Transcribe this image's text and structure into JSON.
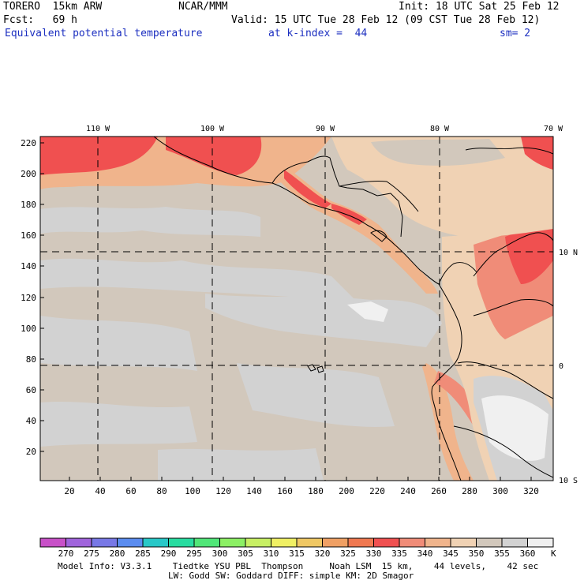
{
  "header": {
    "model": "TORERO  15km ARW",
    "org": "NCAR/MMM",
    "init": "Init: 18 UTC Sat 25 Feb 12",
    "fcst": "Fcst:   69 h",
    "valid": "Valid: 15 UTC Tue 28 Feb 12 (09 CST Tue 28 Feb 12)",
    "field": "Equivalent potential temperature",
    "level": "at k-index =  44",
    "smooth": "sm= 2"
  },
  "axes": {
    "left_ticks": [
      "220",
      "200",
      "180",
      "160",
      "140",
      "120",
      "100",
      "80",
      "60",
      "40",
      "20"
    ],
    "bottom_ticks": [
      "20",
      "40",
      "60",
      "80",
      "100",
      "120",
      "140",
      "160",
      "180",
      "200",
      "220",
      "240",
      "260",
      "280",
      "300",
      "320"
    ],
    "lon_labels": [
      "110 W",
      "100 W",
      "90 W",
      "80 W",
      "70 W"
    ],
    "lat_labels": [
      "10 N",
      "0",
      "10 S"
    ]
  },
  "colorbar": {
    "unit": "K",
    "labels": [
      "270",
      "275",
      "280",
      "285",
      "290",
      "295",
      "300",
      "305",
      "310",
      "315",
      "320",
      "325",
      "330",
      "335",
      "340",
      "345",
      "350",
      "355",
      "360"
    ],
    "colors": [
      "#c850c8",
      "#a064dc",
      "#7878e6",
      "#5a8cf0",
      "#28c8c8",
      "#28dca0",
      "#50e678",
      "#8cf064",
      "#c8f064",
      "#f0f064",
      "#f0c864",
      "#f0a064",
      "#f07850",
      "#f05050",
      "#f08c78",
      "#f0b48c",
      "#f0d2b4",
      "#d2c8bc",
      "#d2d2d2"
    ],
    "top_color": "#f0f0f0"
  },
  "footer": {
    "line1": "Model Info: V3.3.1    Tiedtke YSU PBL  Thompson     Noah LSM  15 km,    44 levels,    42 sec",
    "line2": "LW: Godd SW: Goddard DIFF: simple KM: 2D Smagor"
  }
}
